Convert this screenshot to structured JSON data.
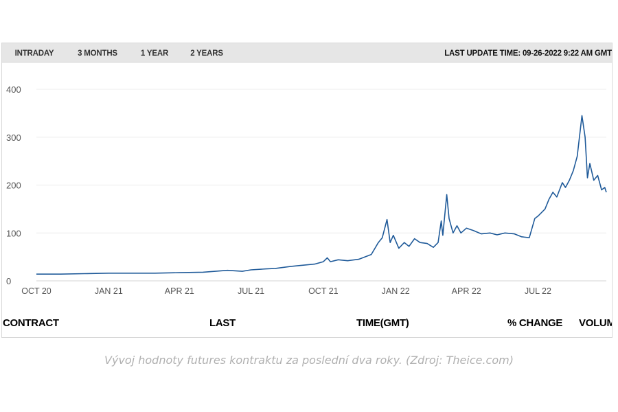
{
  "tabs": [
    {
      "label": "INTRADAY",
      "active": false
    },
    {
      "label": "3 MONTHS",
      "active": false
    },
    {
      "label": "1 YEAR",
      "active": false
    },
    {
      "label": "2 YEARS",
      "active": true
    }
  ],
  "last_update": "LAST UPDATE TIME: 09-26-2022 9:22 AM GMT",
  "table_headers": [
    "CONTRACT",
    "LAST",
    "TIME(GMT)",
    "% CHANGE",
    "VOLUME"
  ],
  "caption": "Vývoj hodnoty futures kontraktu za poslední dva roky. (Zdroj: Theice.com)",
  "colors": {
    "line": "#1f5a99",
    "grid": "#ececec",
    "active_tab_bg": "#000000",
    "tabbar_bg": "#e6e6e6"
  },
  "chart_data": {
    "type": "line",
    "title": "",
    "xlabel": "",
    "ylabel": "",
    "grid": true,
    "ylim": [
      0,
      400
    ],
    "yticks": [
      0,
      100,
      200,
      300,
      400
    ],
    "xlim": [
      "2020-10-01",
      "2022-09-26"
    ],
    "xticks": [
      {
        "date": "2020-10-01",
        "label": "OCT 20"
      },
      {
        "date": "2021-01-01",
        "label": "JAN 21"
      },
      {
        "date": "2021-04-01",
        "label": "APR 21"
      },
      {
        "date": "2021-07-01",
        "label": "JUL 21"
      },
      {
        "date": "2021-10-01",
        "label": "OCT 21"
      },
      {
        "date": "2022-01-01",
        "label": "JAN 22"
      },
      {
        "date": "2022-04-01",
        "label": "APR 22"
      },
      {
        "date": "2022-07-01",
        "label": "JUL 22"
      }
    ],
    "series": [
      {
        "points": [
          [
            "2020-10-01",
            14
          ],
          [
            "2020-11-01",
            14
          ],
          [
            "2020-12-01",
            15
          ],
          [
            "2021-01-01",
            16
          ],
          [
            "2021-02-01",
            16
          ],
          [
            "2021-03-01",
            16
          ],
          [
            "2021-04-01",
            17
          ],
          [
            "2021-05-01",
            18
          ],
          [
            "2021-06-01",
            22
          ],
          [
            "2021-06-20",
            20
          ],
          [
            "2021-07-01",
            23
          ],
          [
            "2021-07-20",
            25
          ],
          [
            "2021-08-01",
            26
          ],
          [
            "2021-08-20",
            30
          ],
          [
            "2021-09-01",
            32
          ],
          [
            "2021-09-20",
            35
          ],
          [
            "2021-10-01",
            40
          ],
          [
            "2021-10-06",
            48
          ],
          [
            "2021-10-10",
            40
          ],
          [
            "2021-10-20",
            44
          ],
          [
            "2021-11-01",
            42
          ],
          [
            "2021-11-15",
            45
          ],
          [
            "2021-12-01",
            55
          ],
          [
            "2021-12-10",
            80
          ],
          [
            "2021-12-15",
            90
          ],
          [
            "2021-12-21",
            128
          ],
          [
            "2021-12-25",
            80
          ],
          [
            "2021-12-29",
            95
          ],
          [
            "2022-01-05",
            68
          ],
          [
            "2022-01-12",
            80
          ],
          [
            "2022-01-18",
            72
          ],
          [
            "2022-01-25",
            88
          ],
          [
            "2022-02-01",
            80
          ],
          [
            "2022-02-10",
            78
          ],
          [
            "2022-02-18",
            70
          ],
          [
            "2022-02-24",
            80
          ],
          [
            "2022-02-28",
            125
          ],
          [
            "2022-03-02",
            95
          ],
          [
            "2022-03-07",
            180
          ],
          [
            "2022-03-10",
            130
          ],
          [
            "2022-03-15",
            100
          ],
          [
            "2022-03-20",
            115
          ],
          [
            "2022-03-25",
            100
          ],
          [
            "2022-04-01",
            110
          ],
          [
            "2022-04-10",
            105
          ],
          [
            "2022-04-20",
            98
          ],
          [
            "2022-05-01",
            100
          ],
          [
            "2022-05-10",
            96
          ],
          [
            "2022-05-20",
            100
          ],
          [
            "2022-06-01",
            98
          ],
          [
            "2022-06-10",
            92
          ],
          [
            "2022-06-20",
            90
          ],
          [
            "2022-06-27",
            130
          ],
          [
            "2022-07-01",
            135
          ],
          [
            "2022-07-10",
            150
          ],
          [
            "2022-07-15",
            170
          ],
          [
            "2022-07-20",
            185
          ],
          [
            "2022-07-25",
            175
          ],
          [
            "2022-08-01",
            205
          ],
          [
            "2022-08-05",
            195
          ],
          [
            "2022-08-10",
            210
          ],
          [
            "2022-08-15",
            230
          ],
          [
            "2022-08-20",
            260
          ],
          [
            "2022-08-26",
            345
          ],
          [
            "2022-08-30",
            300
          ],
          [
            "2022-09-02",
            215
          ],
          [
            "2022-09-05",
            245
          ],
          [
            "2022-09-10",
            210
          ],
          [
            "2022-09-15",
            220
          ],
          [
            "2022-09-20",
            190
          ],
          [
            "2022-09-24",
            195
          ],
          [
            "2022-09-26",
            185
          ]
        ]
      }
    ]
  }
}
